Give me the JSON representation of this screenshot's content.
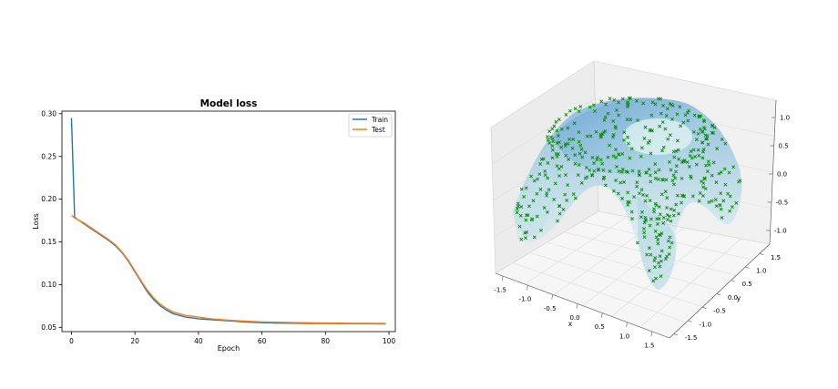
{
  "chart_data": [
    {
      "type": "line",
      "title": "Model loss",
      "xlabel": "Epoch",
      "ylabel": "Loss",
      "xlim": [
        -3,
        102
      ],
      "ylim": [
        0.045,
        0.303
      ],
      "xticks": [
        0,
        20,
        40,
        60,
        80,
        100
      ],
      "yticks": [
        0.05,
        0.1,
        0.15,
        0.2,
        0.25,
        0.3
      ],
      "xtick_labels": [
        "0",
        "20",
        "40",
        "60",
        "80",
        "100"
      ],
      "ytick_labels": [
        "0.05",
        "0.10",
        "0.15",
        "0.20",
        "0.25",
        "0.30"
      ],
      "grid": false,
      "legend": "top-right",
      "x": [
        0,
        1,
        2,
        4,
        6,
        8,
        10,
        12,
        14,
        16,
        18,
        20,
        22,
        24,
        26,
        28,
        30,
        32,
        34,
        36,
        38,
        40,
        44,
        48,
        52,
        56,
        60,
        65,
        70,
        75,
        80,
        85,
        90,
        95,
        99
      ],
      "series": [
        {
          "name": "Train",
          "color": "#1f77b4",
          "values": [
            0.295,
            0.179,
            0.176,
            0.171,
            0.166,
            0.161,
            0.156,
            0.151,
            0.145,
            0.137,
            0.127,
            0.115,
            0.103,
            0.091,
            0.082,
            0.075,
            0.07,
            0.066,
            0.064,
            0.062,
            0.061,
            0.06,
            0.059,
            0.058,
            0.057,
            0.056,
            0.0555,
            0.055,
            0.0548,
            0.0546,
            0.0545,
            0.0544,
            0.0543,
            0.0542,
            0.054
          ]
        },
        {
          "name": "Test",
          "color": "#ff7f0e",
          "values": [
            0.181,
            0.178,
            0.176,
            0.172,
            0.167,
            0.162,
            0.157,
            0.152,
            0.146,
            0.138,
            0.128,
            0.116,
            0.104,
            0.093,
            0.084,
            0.077,
            0.072,
            0.068,
            0.066,
            0.064,
            0.063,
            0.062,
            0.06,
            0.0588,
            0.0578,
            0.057,
            0.0564,
            0.056,
            0.0556,
            0.0553,
            0.0551,
            0.0549,
            0.0547,
            0.0546,
            0.0545
          ]
        }
      ]
    },
    {
      "type": "surface3d",
      "xlabel": "x",
      "ylabel": "y",
      "xtick_labels": [
        "-1.5",
        "-1.0",
        "-0.5",
        "0.0",
        "0.5",
        "1.0",
        "1.5"
      ],
      "ytick_labels": [
        "-1.5",
        "-1.0",
        "-0.5",
        "0.0",
        "0.5",
        "1.0",
        "1.5"
      ],
      "ztick_labels": [
        "-1.0",
        "-0.5",
        "0.0",
        "0.5",
        "1.0"
      ],
      "xlim": [
        -1.5,
        1.5
      ],
      "ylim": [
        -1.5,
        1.5
      ],
      "zlim": [
        -1.0,
        1.0
      ],
      "surface": "predicted surface, colormap blue-green",
      "scatter_marker": "x",
      "scatter_color": "#0a8a0a"
    }
  ]
}
